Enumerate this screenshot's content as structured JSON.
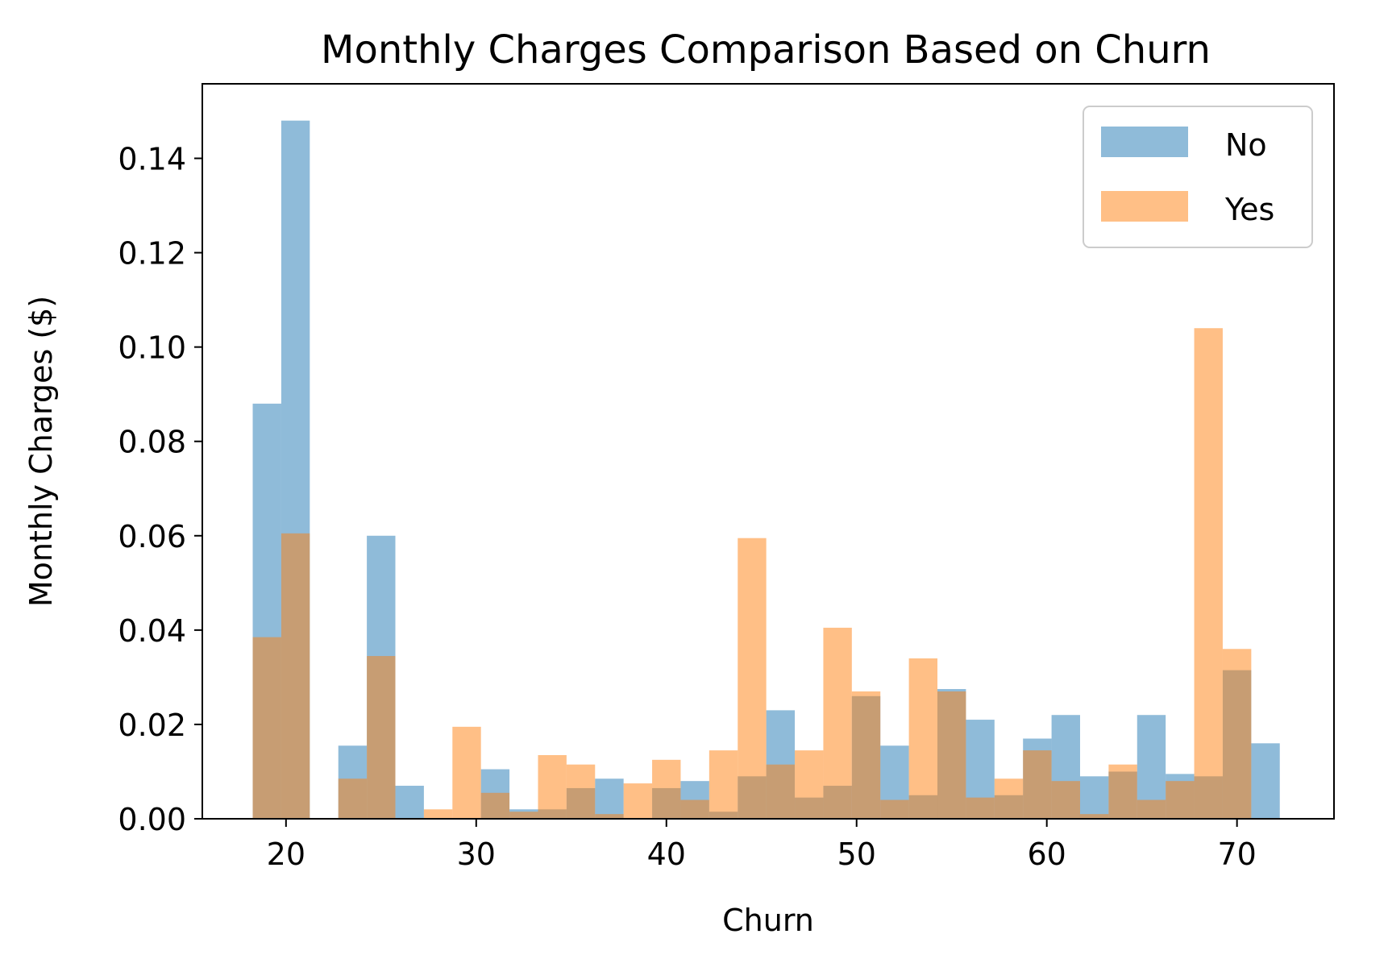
{
  "chart_data": {
    "type": "bar",
    "title": "Monthly Charges Comparison Based on Churn",
    "xlabel": "Churn",
    "ylabel": "Monthly Charges ($)",
    "xlim": [
      15.6,
      75.1
    ],
    "ylim": [
      0,
      0.1558
    ],
    "bin_start": 18.25,
    "bin_width": 1.5,
    "xticks": [
      20,
      30,
      40,
      50,
      60,
      70
    ],
    "yticks": [
      0.0,
      0.02,
      0.04,
      0.06,
      0.08,
      0.1,
      0.12,
      0.14
    ],
    "legend_position": "top-right",
    "grid": false,
    "series": [
      {
        "name": "No",
        "color": "#1f77b4",
        "opacity": 0.5,
        "values": [
          0.088,
          0.148,
          0,
          0.0155,
          0.06,
          0.007,
          0,
          0,
          0.0105,
          0.002,
          0.002,
          0.0065,
          0.0085,
          0,
          0.0065,
          0.008,
          0.0015,
          0.009,
          0.023,
          0.0045,
          0.007,
          0.026,
          0.0155,
          0.005,
          0.0275,
          0.021,
          0.005,
          0.017,
          0.022,
          0.009,
          0.01,
          0.022,
          0.0095,
          0.009,
          0.0315,
          0.016
        ]
      },
      {
        "name": "Yes",
        "color": "#ff7f0e",
        "opacity": 0.5,
        "values": [
          0.0385,
          0.0605,
          0,
          0.0085,
          0.0345,
          0,
          0.002,
          0.0195,
          0.0055,
          0.0015,
          0.0135,
          0.0115,
          0.001,
          0.0075,
          0.0125,
          0.004,
          0.0145,
          0.0595,
          0.0115,
          0.0145,
          0.0405,
          0.027,
          0.004,
          0.034,
          0.027,
          0.0045,
          0.0085,
          0.0145,
          0.008,
          0.001,
          0.0115,
          0.004,
          0.008,
          0.104,
          0.036
        ]
      }
    ]
  }
}
